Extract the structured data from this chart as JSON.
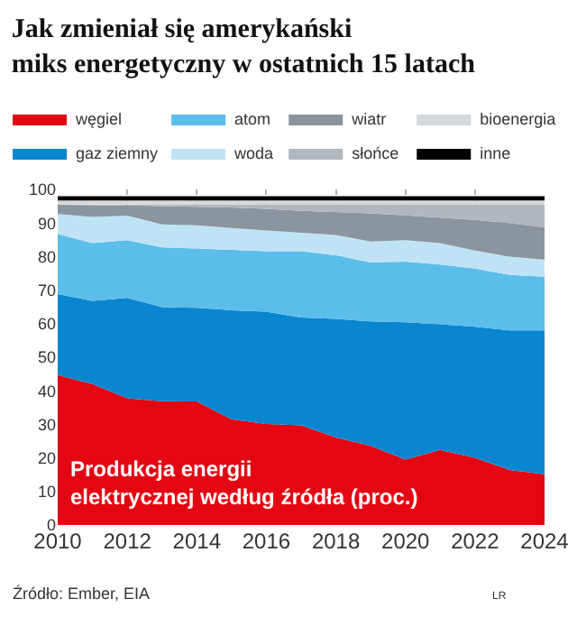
{
  "chart_data": {
    "type": "area",
    "stacked": true,
    "title": "Jak zmieniał się amerykański\nmiks energetyczny w ostatnich 15 latach",
    "x": [
      2010,
      2011,
      2012,
      2013,
      2014,
      2015,
      2016,
      2017,
      2018,
      2019,
      2020,
      2021,
      2022,
      2023,
      2024
    ],
    "series": [
      {
        "name": "węgiel",
        "color": "#e30613",
        "values": [
          44.7,
          42.0,
          37.8,
          36.9,
          36.8,
          31.5,
          30.1,
          29.7,
          26.1,
          23.6,
          19.5,
          22.4,
          20.0,
          16.4,
          15.1
        ]
      },
      {
        "name": "gaz ziemny",
        "color": "#0a86d0",
        "values": [
          24.1,
          24.8,
          29.9,
          28.0,
          27.9,
          32.5,
          33.5,
          32.1,
          35.3,
          37.1,
          40.9,
          37.4,
          39.1,
          41.6,
          42.9
        ]
      },
      {
        "name": "atom",
        "color": "#5bbdea",
        "values": [
          17.9,
          17.2,
          17.2,
          17.8,
          17.7,
          18.0,
          18.0,
          19.8,
          19.0,
          17.5,
          18.1,
          17.8,
          17.3,
          16.5,
          16.0
        ]
      },
      {
        "name": "woda",
        "color": "#bfe3f5",
        "values": [
          6.0,
          7.8,
          7.3,
          6.9,
          6.9,
          6.5,
          6.2,
          5.5,
          6.0,
          6.3,
          6.4,
          6.4,
          5.4,
          5.5,
          5.1
        ]
      },
      {
        "name": "wiatr",
        "color": "#8a959e",
        "values": [
          2.7,
          3.5,
          3.0,
          5.4,
          5.5,
          6.1,
          6.4,
          6.5,
          6.9,
          8.4,
          7.4,
          7.6,
          9.1,
          10.0,
          9.6
        ]
      },
      {
        "name": "słońce",
        "color": "#b0b7bd",
        "values": [
          0.1,
          0.2,
          0.3,
          0.5,
          0.7,
          0.9,
          1.3,
          1.9,
          2.2,
          2.6,
          3.2,
          3.9,
          4.6,
          5.5,
          6.8
        ]
      },
      {
        "name": "bioenergia",
        "color": "#d5d9dc",
        "values": [
          1.2,
          1.2,
          1.2,
          1.2,
          1.2,
          1.2,
          1.2,
          1.2,
          1.2,
          1.2,
          1.2,
          1.2,
          1.2,
          1.2,
          1.2
        ]
      },
      {
        "name": "inne",
        "color": "#000000",
        "values": [
          1.3,
          1.3,
          1.3,
          1.3,
          1.3,
          1.3,
          1.3,
          1.3,
          1.3,
          1.3,
          1.3,
          1.3,
          1.3,
          1.3,
          1.3
        ]
      }
    ],
    "xlim": [
      2010,
      2024
    ],
    "xticks": [
      2010,
      2012,
      2014,
      2016,
      2018,
      2020,
      2022,
      2024
    ],
    "ylim": [
      0,
      100
    ],
    "yticks": [
      0,
      10,
      20,
      30,
      40,
      50,
      60,
      70,
      80,
      90,
      100
    ],
    "grid": true,
    "legend": "top",
    "annotations": [
      "Produkcja energii\nelektrycznej według źródła (proc.)",
      "Źródło: Ember, EIA",
      "LR"
    ]
  }
}
